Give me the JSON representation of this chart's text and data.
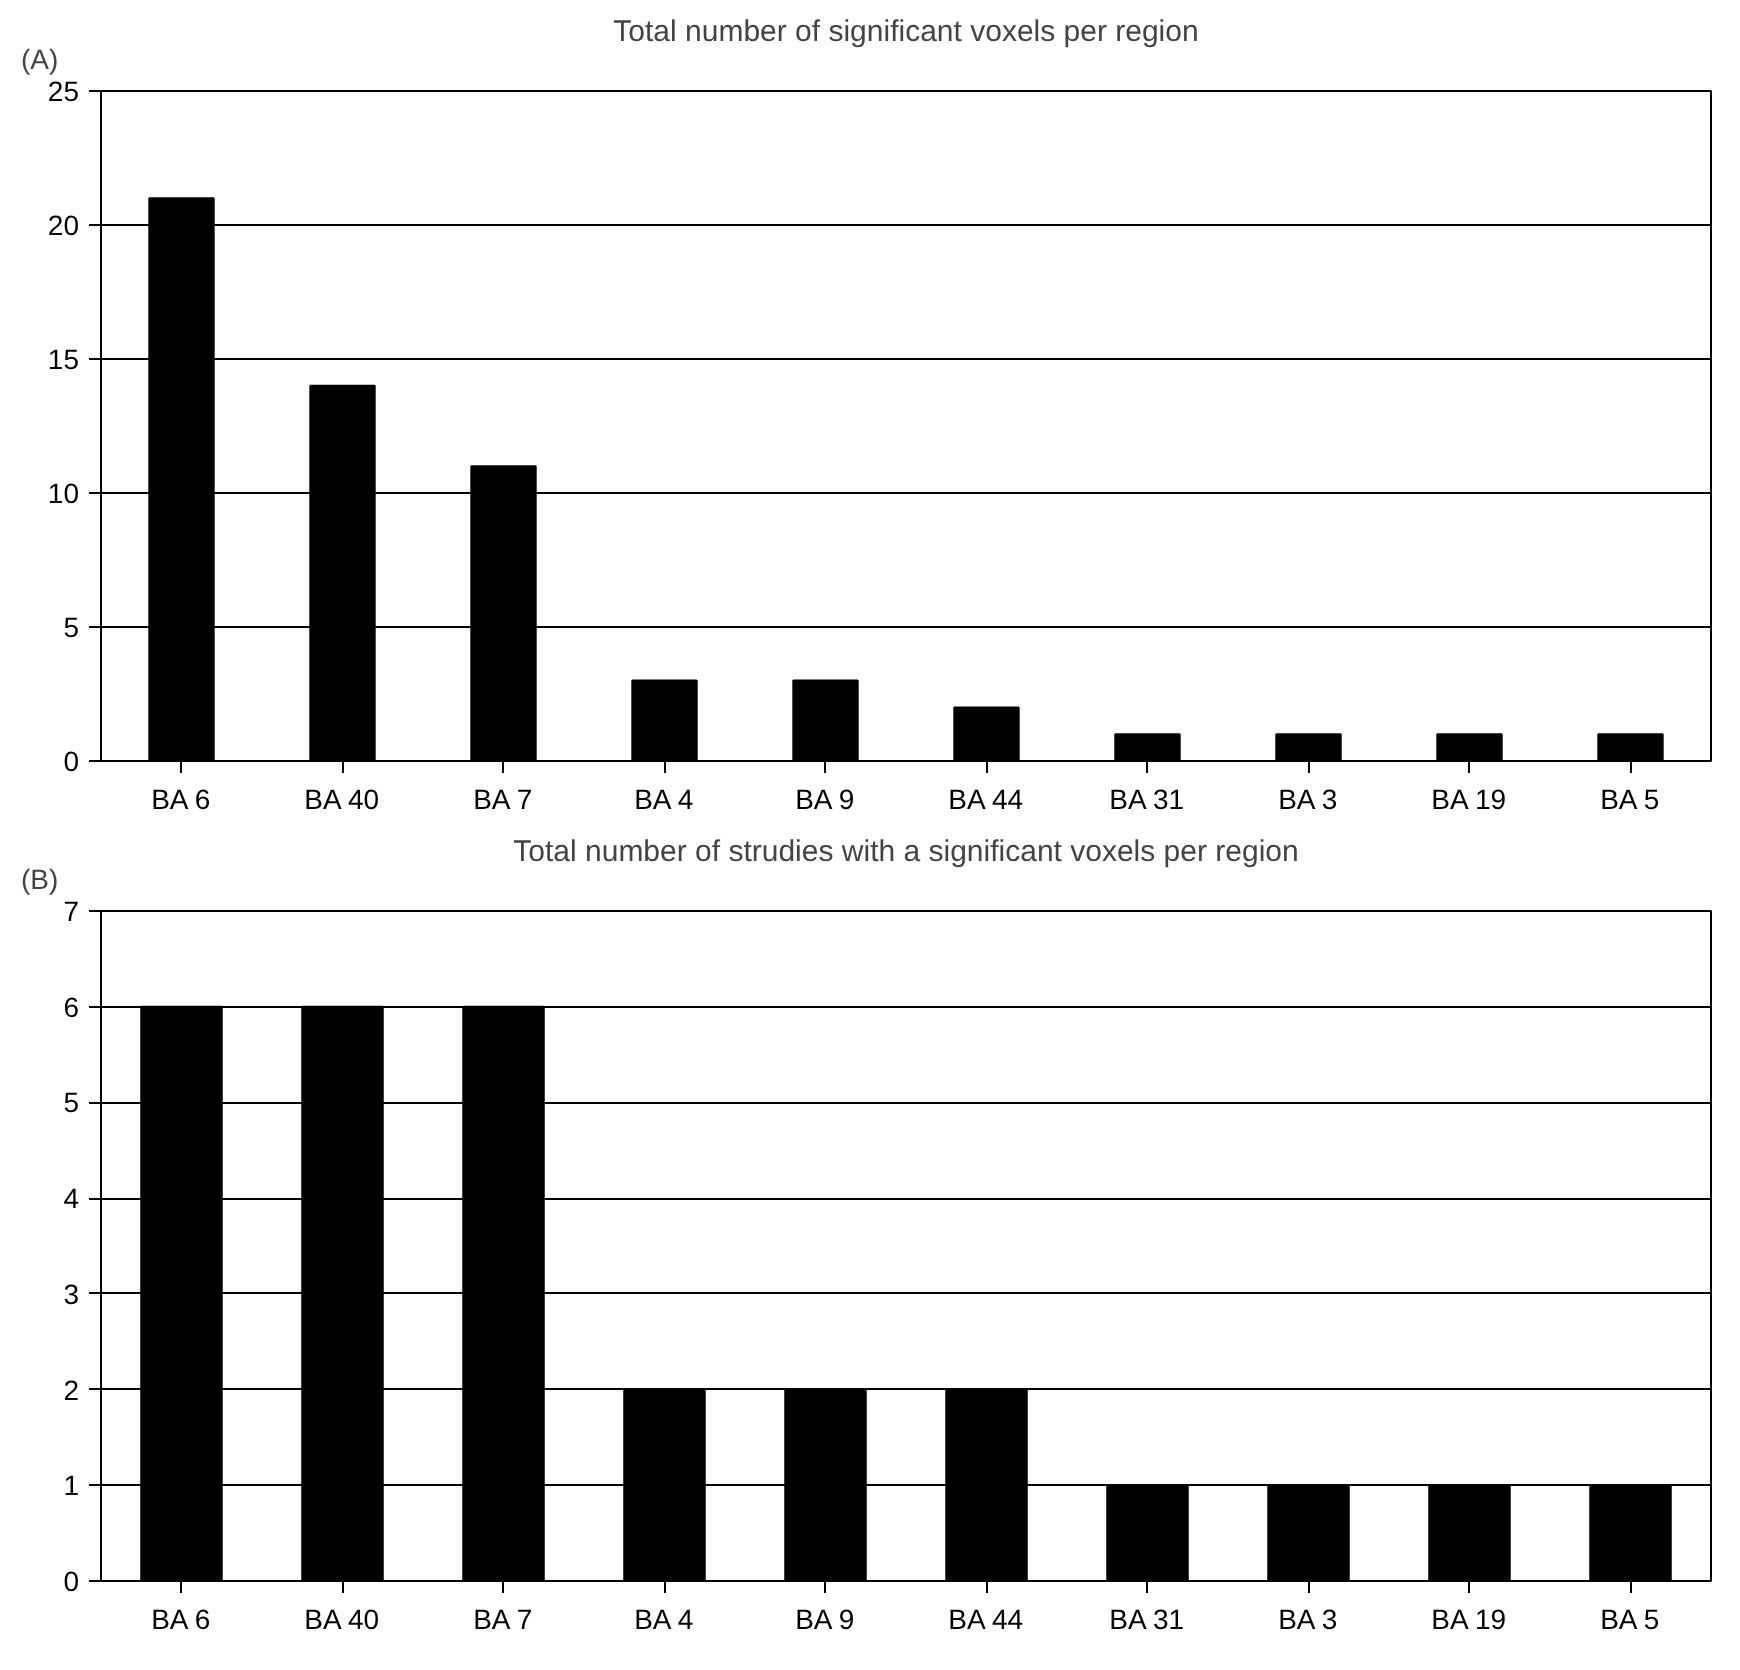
{
  "chart_data": [
    {
      "type": "bar",
      "title": "Total number of significant voxels per region",
      "annotations": [
        "(A)"
      ],
      "categories": [
        "BA 6",
        "BA 40",
        "BA 7",
        "BA 4",
        "BA 9",
        "BA 44",
        "BA 31",
        "BA 3",
        "BA 19",
        "BA 5"
      ],
      "values": [
        21,
        14,
        11,
        3,
        3,
        2,
        1,
        1,
        1,
        1
      ],
      "color": "#000000",
      "ylim": [
        0,
        25
      ],
      "yticks": [
        0,
        5,
        10,
        15,
        20,
        25
      ],
      "grid": "y"
    },
    {
      "type": "bar",
      "title": "Total number of strudies with a significant voxels per region",
      "annotations": [
        "(B)"
      ],
      "categories": [
        "BA 6",
        "BA 40",
        "BA 7",
        "BA 4",
        "BA 9",
        "BA 44",
        "BA 31",
        "BA 3",
        "BA 19",
        "BA 5"
      ],
      "values": [
        6,
        6,
        6,
        2,
        2,
        2,
        1,
        1,
        1,
        1
      ],
      "color": "#000000",
      "ylim": [
        0,
        7
      ],
      "yticks": [
        0,
        1,
        2,
        3,
        4,
        5,
        6,
        7
      ],
      "grid": "y"
    }
  ]
}
